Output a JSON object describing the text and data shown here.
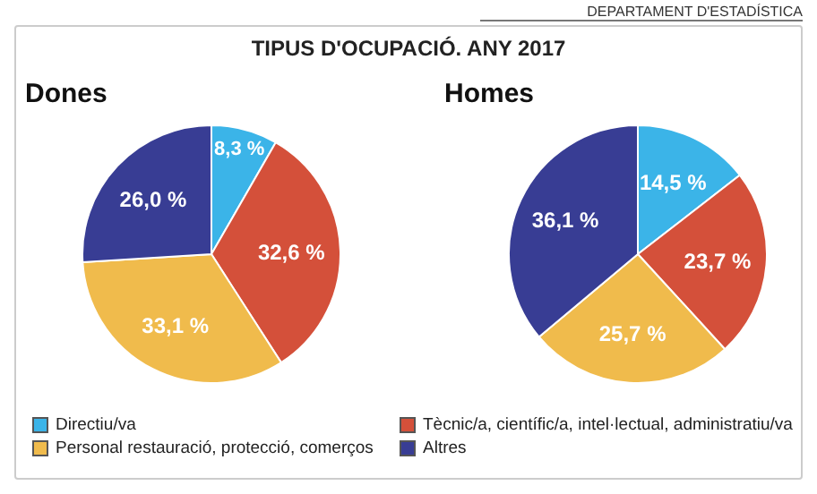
{
  "chart_data": {
    "type": "pie",
    "title": "TIPUS D'OCUPACIÓ. ANY 2017",
    "annotations": [
      "DEPARTAMENT D'ESTADÍSTICA"
    ],
    "categories": [
      "Directiu/va",
      "Tècnic/a, científic/a, intel·lectual, administratiu/va",
      "Personal restauració, protecció, comerços",
      "Altres"
    ],
    "colors": [
      "#3bb4e8",
      "#d4503a",
      "#f0bb4c",
      "#383d94"
    ],
    "legend": "bottom",
    "series": [
      {
        "name": "Dones",
        "values": [
          8.3,
          32.6,
          33.1,
          26.0
        ],
        "value_labels": [
          "8,3 %",
          "32,6 %",
          "33,1 %",
          "26,0 %"
        ]
      },
      {
        "name": "Homes",
        "values": [
          14.5,
          23.7,
          25.7,
          36.1
        ],
        "value_labels": [
          "14,5 %",
          "23,7 %",
          "25,7 %",
          "36,1 %"
        ]
      }
    ]
  }
}
